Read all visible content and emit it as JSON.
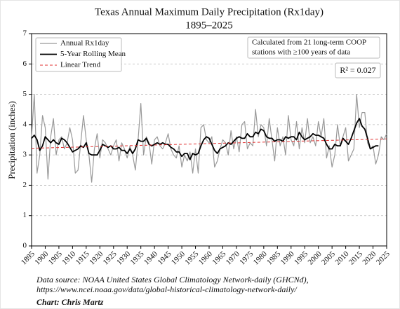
{
  "chart_data": {
    "type": "line",
    "title": "Texas Annual Maximum Daily Precipitation (Rx1day)",
    "subtitle": "1895–2025",
    "y_label": "Precipitation (inches)",
    "annotation": [
      "Calculated from 21 long-term COOP",
      "stations with ≥100 years of data"
    ],
    "r_squared": "R² = 0.027",
    "footer": [
      "Data source: NOAA United States Global Climatology Network-daily (GHCNd),",
      "https://www.ncei.noaa.gov/data/global-historical-climatology-network-daily/",
      "Chart: Chris Martz"
    ],
    "x": [
      1895,
      1896,
      1897,
      1898,
      1899,
      1900,
      1901,
      1902,
      1903,
      1904,
      1905,
      1906,
      1907,
      1908,
      1909,
      1910,
      1911,
      1912,
      1913,
      1914,
      1915,
      1916,
      1917,
      1918,
      1919,
      1920,
      1921,
      1922,
      1923,
      1924,
      1925,
      1926,
      1927,
      1928,
      1929,
      1930,
      1931,
      1932,
      1933,
      1934,
      1935,
      1936,
      1937,
      1938,
      1939,
      1940,
      1941,
      1942,
      1943,
      1944,
      1945,
      1946,
      1947,
      1948,
      1949,
      1950,
      1951,
      1952,
      1953,
      1954,
      1955,
      1956,
      1957,
      1958,
      1959,
      1960,
      1961,
      1962,
      1963,
      1964,
      1965,
      1966,
      1967,
      1968,
      1969,
      1970,
      1971,
      1972,
      1973,
      1974,
      1975,
      1976,
      1977,
      1978,
      1979,
      1980,
      1981,
      1982,
      1983,
      1984,
      1985,
      1986,
      1987,
      1988,
      1989,
      1990,
      1991,
      1992,
      1993,
      1994,
      1995,
      1996,
      1997,
      1998,
      1999,
      2000,
      2001,
      2002,
      2003,
      2004,
      2005,
      2006,
      2007,
      2008,
      2009,
      2010,
      2011,
      2012,
      2013,
      2014,
      2015,
      2016,
      2017,
      2018,
      2019,
      2020,
      2021,
      2022,
      2023,
      2024,
      2025
    ],
    "series": [
      {
        "name": "Annual Rx1day",
        "color": "#999999",
        "width": 1.2,
        "values": [
          3.6,
          5.0,
          2.4,
          3.0,
          4.3,
          3.9,
          2.2,
          3.6,
          4.2,
          3.0,
          3.5,
          3.6,
          3.2,
          3.4,
          3.9,
          3.5,
          2.4,
          2.5,
          3.4,
          4.3,
          3.5,
          3.0,
          2.1,
          3.2,
          3.7,
          2.9,
          3.5,
          3.4,
          3.2,
          3.0,
          3.3,
          3.5,
          2.8,
          3.4,
          3.2,
          2.9,
          3.3,
          3.0,
          2.5,
          3.5,
          4.7,
          3.0,
          3.6,
          3.4,
          2.7,
          3.5,
          3.6,
          3.3,
          3.2,
          3.4,
          3.7,
          3.2,
          3.0,
          2.9,
          3.3,
          2.6,
          3.0,
          2.8,
          3.1,
          2.4,
          3.2,
          2.4,
          3.9,
          4.0,
          3.5,
          3.4,
          3.6,
          2.6,
          2.8,
          3.2,
          3.5,
          3.4,
          3.0,
          3.8,
          3.2,
          3.6,
          3.1,
          4.0,
          4.1,
          3.2,
          3.4,
          3.3,
          4.5,
          3.6,
          4.0,
          3.9,
          3.3,
          4.2,
          3.5,
          2.8,
          3.9,
          3.3,
          3.6,
          3.0,
          4.3,
          3.5,
          3.3,
          4.1,
          3.2,
          3.9,
          3.4,
          4.2,
          3.4,
          3.6,
          3.3,
          4.1,
          3.6,
          4.2,
          2.9,
          3.3,
          2.6,
          3.0,
          4.0,
          3.3,
          3.6,
          3.9,
          2.8,
          3.0,
          3.2,
          5.0,
          3.9,
          4.4,
          4.4,
          3.4,
          3.2,
          3.3,
          2.7,
          3.0,
          3.6,
          3.5,
          3.7
        ]
      },
      {
        "name": "5-Year Rolling Mean",
        "color": "#000000",
        "width": 1.8,
        "values": [
          3.55,
          3.65,
          3.5,
          3.15,
          3.3,
          3.6,
          3.5,
          3.4,
          3.5,
          3.4,
          3.35,
          3.55,
          3.5,
          3.4,
          3.25,
          3.1,
          3.15,
          3.2,
          3.3,
          3.25,
          3.4,
          3.05,
          3.0,
          3.0,
          3.0,
          3.15,
          3.35,
          3.3,
          3.25,
          3.3,
          3.2,
          3.2,
          3.25,
          3.15,
          3.15,
          3.05,
          3.2,
          3.05,
          3.2,
          3.5,
          3.45,
          3.45,
          3.55,
          3.35,
          3.3,
          3.35,
          3.4,
          3.35,
          3.4,
          3.35,
          3.35,
          3.25,
          3.2,
          3.1,
          3.1,
          2.95,
          3.05,
          3.05,
          2.85,
          3.05,
          3.0,
          3.05,
          3.3,
          3.5,
          3.6,
          3.55,
          3.35,
          3.15,
          3.05,
          3.2,
          3.25,
          3.3,
          3.4,
          3.35,
          3.45,
          3.55,
          3.6,
          3.55,
          3.55,
          3.7,
          3.6,
          3.6,
          3.75,
          3.7,
          3.85,
          3.8,
          3.6,
          3.55,
          3.55,
          3.45,
          3.5,
          3.5,
          3.45,
          3.6,
          3.55,
          3.6,
          3.6,
          3.5,
          3.75,
          3.6,
          3.5,
          3.55,
          3.6,
          3.7,
          3.65,
          3.65,
          3.6,
          3.55,
          3.35,
          3.2,
          3.2,
          3.35,
          3.3,
          3.3,
          3.55,
          3.45,
          3.35,
          3.55,
          3.8,
          4.05,
          4.2,
          3.95,
          3.85,
          3.55,
          3.2,
          3.25,
          3.3,
          3.3,
          null,
          null,
          null
        ]
      },
      {
        "name": "Linear Trend",
        "color": "#e03030",
        "width": 1,
        "dash": true,
        "x": [
          1895,
          2025
        ],
        "values": [
          3.22,
          3.53
        ]
      }
    ],
    "xlim": [
      1895,
      2025
    ],
    "xticks": [
      1895,
      1900,
      1905,
      1910,
      1915,
      1920,
      1925,
      1930,
      1935,
      1940,
      1945,
      1950,
      1955,
      1960,
      1965,
      1970,
      1975,
      1980,
      1985,
      1990,
      1995,
      2000,
      2005,
      2010,
      2015,
      2020,
      2025
    ],
    "ylim": [
      0,
      7
    ],
    "yticks": [
      0,
      1,
      2,
      3,
      4,
      5,
      6,
      7
    ],
    "grid": true
  }
}
